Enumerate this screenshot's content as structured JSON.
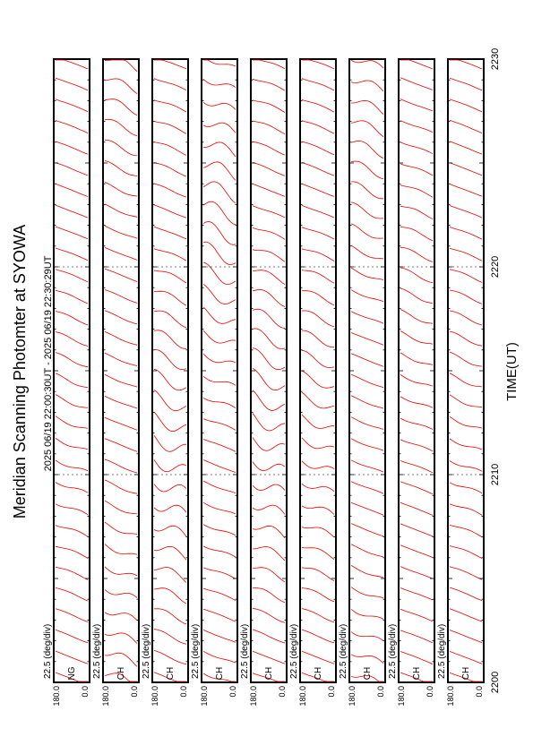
{
  "title": "Meridian Scanning Photomter at SYOWA",
  "header_time": "2025 06/19 22:00:30UT - 2025 06/19 22:30:29UT",
  "xlabel": "TIME(UT)",
  "scale_label": "22.5 (deg/div)",
  "colors": {
    "trace": "#ee0000",
    "frame": "#000000"
  },
  "chart_data": {
    "type": "line",
    "orientation": "rotated-90-clockwise",
    "x_ticks": [
      "2200",
      "2210",
      "2220",
      "2230"
    ],
    "xlim": [
      2200,
      2230
    ],
    "panels": [
      {
        "label": "NG",
        "ylim": [
          0.0,
          180.0
        ],
        "ylabels": [
          "180.0",
          "0.0"
        ],
        "traces": 30,
        "activity": "low"
      },
      {
        "label": "CH",
        "ylim": [
          0.0,
          180.0
        ],
        "ylabels": [
          "180.0",
          "0.0"
        ],
        "traces": 30,
        "activity": "medium"
      },
      {
        "label": "CH",
        "ylim": [
          0.0,
          180.0
        ],
        "ylabels": [
          "180.0",
          "0.0"
        ],
        "traces": 30,
        "activity": "high"
      },
      {
        "label": "CH",
        "ylim": [
          0.0,
          180.0
        ],
        "ylabels": [
          "180.0",
          "0.0"
        ],
        "traces": 30,
        "activity": "high"
      },
      {
        "label": "CH",
        "ylim": [
          0.0,
          180.0
        ],
        "ylabels": [
          "180.0",
          "0.0"
        ],
        "traces": 30,
        "activity": "high"
      },
      {
        "label": "CH",
        "ylim": [
          0.0,
          180.0
        ],
        "ylabels": [
          "180.0",
          "0.0"
        ],
        "traces": 30,
        "activity": "medium"
      },
      {
        "label": "CH",
        "ylim": [
          0.0,
          180.0
        ],
        "ylabels": [
          "180.0",
          "0.0"
        ],
        "traces": 30,
        "activity": "medium"
      },
      {
        "label": "CH",
        "ylim": [
          0.0,
          180.0
        ],
        "ylabels": [
          "180.0",
          "0.0"
        ],
        "traces": 30,
        "activity": "low"
      },
      {
        "label": "CH",
        "ylim": [
          0.0,
          180.0
        ],
        "ylabels": [
          "180.0",
          "0.0"
        ],
        "traces": 30,
        "activity": "low"
      }
    ]
  }
}
